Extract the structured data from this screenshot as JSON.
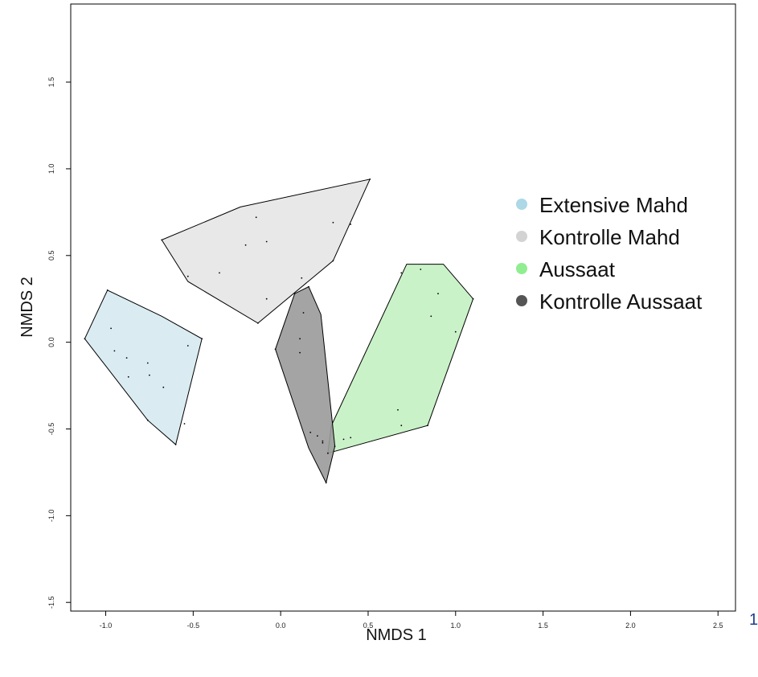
{
  "page_number": "1",
  "chart_data": {
    "type": "scatter",
    "title": "",
    "xlabel": "NMDS 1",
    "ylabel": "NMDS 2",
    "xlim": [
      -1.2,
      2.6
    ],
    "ylim": [
      -1.55,
      1.95
    ],
    "x_ticks": [
      -1.0,
      -0.5,
      0.0,
      0.5,
      1.0,
      1.5,
      2.0,
      2.5
    ],
    "x_tick_labels": [
      "-1.0",
      "-0.5",
      "0.0",
      "0.5",
      "1.0",
      "1.5",
      "2.0",
      "2.5"
    ],
    "y_ticks": [
      -1.5,
      -1.0,
      -0.5,
      0.0,
      0.5,
      1.0,
      1.5
    ],
    "y_tick_labels": [
      "-1.5",
      "-1.0",
      "-0.5",
      "0.0",
      "0.5",
      "1.0",
      "1.5"
    ],
    "grid": false,
    "legend_position": "right",
    "series": [
      {
        "name": "Extensive Mahd",
        "color": "#add8e6",
        "fill": "#d6eaf1",
        "hull": [
          [
            -0.99,
            0.3
          ],
          [
            -1.12,
            0.02
          ],
          [
            -0.76,
            -0.45
          ],
          [
            -0.6,
            -0.59
          ],
          [
            -0.45,
            0.02
          ],
          [
            -0.68,
            0.15
          ]
        ],
        "points": [
          [
            -0.99,
            0.3
          ],
          [
            -1.12,
            0.02
          ],
          [
            -0.97,
            0.08
          ],
          [
            -0.95,
            -0.05
          ],
          [
            -0.88,
            -0.09
          ],
          [
            -0.87,
            -0.2
          ],
          [
            -0.76,
            -0.12
          ],
          [
            -0.75,
            -0.19
          ],
          [
            -0.67,
            -0.26
          ],
          [
            -0.6,
            -0.59
          ],
          [
            -0.55,
            -0.47
          ],
          [
            -0.53,
            -0.02
          ],
          [
            -0.45,
            0.02
          ],
          [
            -0.76,
            -0.45
          ]
        ]
      },
      {
        "name": "Kontrolle Mahd",
        "color": "#d3d3d3",
        "fill": "#e6e6e6",
        "hull": [
          [
            -0.68,
            0.59
          ],
          [
            -0.53,
            0.35
          ],
          [
            -0.13,
            0.11
          ],
          [
            0.3,
            0.47
          ],
          [
            0.51,
            0.94
          ],
          [
            -0.23,
            0.78
          ]
        ],
        "points": [
          [
            -0.68,
            0.59
          ],
          [
            -0.53,
            0.38
          ],
          [
            -0.35,
            0.4
          ],
          [
            -0.2,
            0.56
          ],
          [
            -0.14,
            0.72
          ],
          [
            -0.08,
            0.58
          ],
          [
            -0.08,
            0.25
          ],
          [
            0.12,
            0.37
          ],
          [
            0.3,
            0.69
          ],
          [
            0.4,
            0.68
          ],
          [
            0.51,
            0.94
          ],
          [
            -0.13,
            0.11
          ],
          [
            0.3,
            0.47
          ]
        ]
      },
      {
        "name": "Aussaat",
        "color": "#90ee90",
        "fill": "#c4f1c2",
        "hull": [
          [
            0.27,
            -0.64
          ],
          [
            0.84,
            -0.48
          ],
          [
            1.1,
            0.25
          ],
          [
            0.93,
            0.45
          ],
          [
            0.72,
            0.45
          ],
          [
            0.29,
            -0.48
          ]
        ],
        "points": [
          [
            0.27,
            -0.64
          ],
          [
            0.36,
            -0.56
          ],
          [
            0.4,
            -0.55
          ],
          [
            0.67,
            -0.39
          ],
          [
            0.69,
            -0.48
          ],
          [
            0.69,
            0.4
          ],
          [
            0.8,
            0.42
          ],
          [
            0.9,
            0.28
          ],
          [
            0.86,
            0.15
          ],
          [
            1.0,
            0.06
          ],
          [
            1.1,
            0.25
          ],
          [
            0.84,
            -0.48
          ]
        ]
      },
      {
        "name": "Kontrolle Aussaat",
        "color": "#555555",
        "fill": "#9a9a9a",
        "hull": [
          [
            -0.03,
            -0.04
          ],
          [
            0.16,
            -0.61
          ],
          [
            0.26,
            -0.81
          ],
          [
            0.31,
            -0.6
          ],
          [
            0.23,
            0.16
          ],
          [
            0.16,
            0.32
          ],
          [
            0.08,
            0.28
          ]
        ],
        "points": [
          [
            -0.03,
            -0.04
          ],
          [
            0.11,
            0.02
          ],
          [
            0.11,
            -0.06
          ],
          [
            0.13,
            0.17
          ],
          [
            0.17,
            -0.52
          ],
          [
            0.21,
            -0.54
          ],
          [
            0.24,
            -0.57
          ],
          [
            0.24,
            -0.58
          ],
          [
            0.26,
            -0.81
          ],
          [
            0.31,
            -0.6
          ],
          [
            0.16,
            0.32
          ],
          [
            0.08,
            0.28
          ]
        ]
      }
    ]
  }
}
